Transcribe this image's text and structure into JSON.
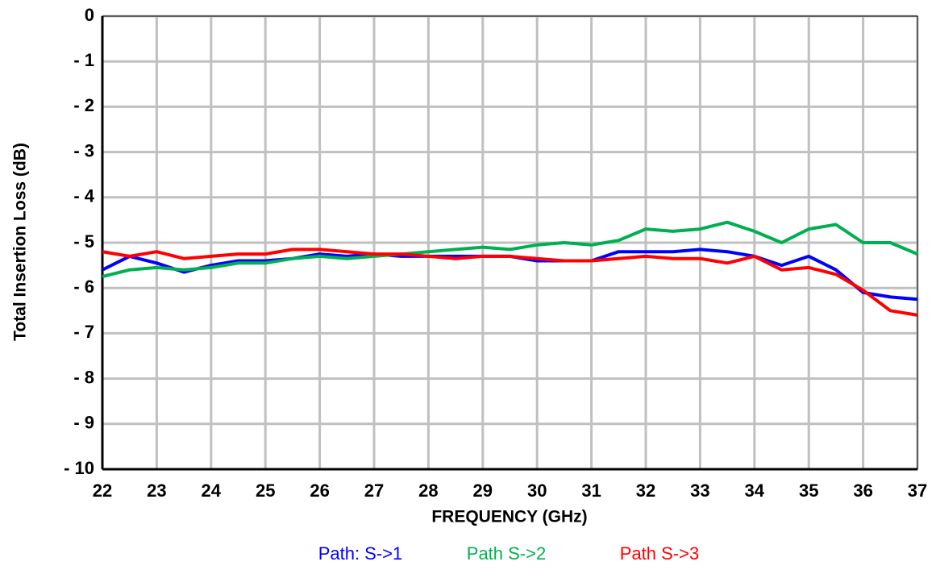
{
  "chart_data": {
    "type": "line",
    "xlabel": "FREQUENCY (GHz)",
    "ylabel": "Total Insertion Loss (dB)",
    "x": [
      22,
      22.5,
      23,
      23.5,
      24,
      24.5,
      25,
      25.5,
      26,
      26.5,
      27,
      27.5,
      28,
      28.5,
      29,
      29.5,
      30,
      30.5,
      31,
      31.5,
      32,
      32.5,
      33,
      33.5,
      34,
      34.5,
      35,
      35.5,
      36,
      36.5,
      37
    ],
    "series": [
      {
        "name": "Path: S->1",
        "color": "#0000ff",
        "values": [
          -5.6,
          -5.3,
          -5.45,
          -5.65,
          -5.5,
          -5.4,
          -5.4,
          -5.35,
          -5.25,
          -5.3,
          -5.25,
          -5.3,
          -5.3,
          -5.3,
          -5.3,
          -5.3,
          -5.4,
          -5.4,
          -5.4,
          -5.2,
          -5.2,
          -5.2,
          -5.15,
          -5.2,
          -5.3,
          -5.5,
          -5.3,
          -5.6,
          -6.1,
          -6.2,
          -6.25
        ]
      },
      {
        "name": "Path S->2",
        "color": "#00b050",
        "values": [
          -5.75,
          -5.6,
          -5.55,
          -5.6,
          -5.55,
          -5.45,
          -5.45,
          -5.35,
          -5.3,
          -5.35,
          -5.3,
          -5.25,
          -5.2,
          -5.15,
          -5.1,
          -5.15,
          -5.05,
          -5.0,
          -5.05,
          -4.95,
          -4.7,
          -4.75,
          -4.7,
          -4.55,
          -4.75,
          -5.0,
          -4.7,
          -4.6,
          -5.0,
          -5.0,
          -5.25
        ]
      },
      {
        "name": "Path S->3",
        "color": "#ff0000",
        "values": [
          -5.2,
          -5.3,
          -5.2,
          -5.35,
          -5.3,
          -5.25,
          -5.25,
          -5.15,
          -5.15,
          -5.2,
          -5.25,
          -5.25,
          -5.3,
          -5.35,
          -5.3,
          -5.3,
          -5.35,
          -5.4,
          -5.4,
          -5.35,
          -5.3,
          -5.35,
          -5.35,
          -5.45,
          -5.3,
          -5.6,
          -5.55,
          -5.7,
          -6.05,
          -6.5,
          -6.6
        ]
      }
    ],
    "xlim": [
      22,
      37
    ],
    "xticks": [
      22,
      23,
      24,
      25,
      26,
      27,
      28,
      29,
      30,
      31,
      32,
      33,
      34,
      35,
      36,
      37
    ],
    "ylim": [
      -10,
      0
    ],
    "yticks": [
      0,
      {
        "value": -1,
        "label": "- 1"
      },
      {
        "value": -2,
        "label": "- 2"
      },
      {
        "value": -3,
        "label": "- 3"
      },
      {
        "value": -4,
        "label": "- 4"
      },
      {
        "value": -5,
        "label": "- 5"
      },
      {
        "value": -6,
        "label": "- 6"
      },
      {
        "value": -7,
        "label": "- 7"
      },
      {
        "value": -8,
        "label": "- 8"
      },
      {
        "value": -9,
        "label": "- 9"
      },
      {
        "value": -10,
        "label": "- 10"
      }
    ],
    "grid": true,
    "legend": "bottom"
  }
}
